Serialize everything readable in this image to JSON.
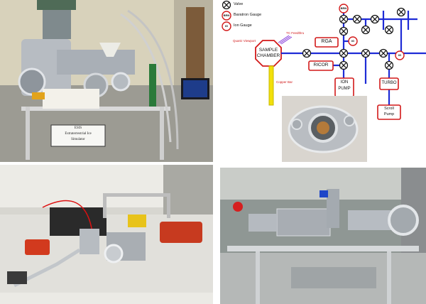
{
  "photos": {
    "top_left": {
      "sign_line1": "ESIS",
      "sign_line2": "Extraterrestrial Ice",
      "sign_line3": "Simulator"
    },
    "top_right_inset": "chamber-photo"
  },
  "diagram": {
    "legend": [
      {
        "symbol": "valve-symbol",
        "text": "Valve"
      },
      {
        "symbol": "BRN",
        "text": "Baratron Gauge"
      },
      {
        "symbol": "IG",
        "text": "Ion Gauge"
      }
    ],
    "labels": {
      "tc_feedthrough": "TC Feedthru",
      "quartz_viewport": "Quartz Viewport",
      "sample_chamber_1": "SAMPLE",
      "sample_chamber_2": "CHAMBER",
      "copper_bar": "Copper Bar",
      "rga": "RGA",
      "ricor": "RICOR",
      "ion_pump_1": "ION",
      "ion_pump_2": "PUMP",
      "turbo": "TURBO",
      "scroll_1": "Scroll",
      "scroll_2": "Pump",
      "brn_top": "BRN",
      "ig_rga": "IG",
      "ig_right": "IG",
      "ig_lower": "IG"
    },
    "colors": {
      "line": "#1e2bd6",
      "box_border": "#d21919",
      "copper": "#f2e00b"
    }
  }
}
